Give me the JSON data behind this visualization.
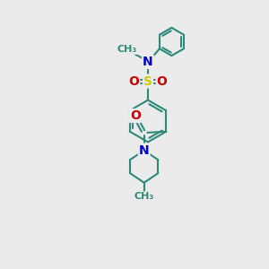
{
  "bg_color": "#ebebeb",
  "atom_colors": {
    "C": "#2d8a7a",
    "N": "#0000cc",
    "O": "#cc0000",
    "S": "#cccc00"
  },
  "bond_color": "#2d8a7a",
  "bond_width": 1.5,
  "figsize": [
    3.0,
    3.0
  ],
  "dpi": 100,
  "xlim": [
    0,
    10
  ],
  "ylim": [
    0,
    10
  ]
}
